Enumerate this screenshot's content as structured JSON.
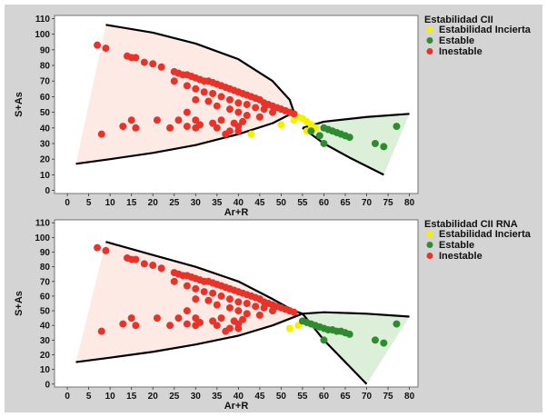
{
  "chart_data": [
    {
      "type": "scatter",
      "xlabel": "Ar+R",
      "ylabel": "S+As",
      "xlim": [
        -3,
        82
      ],
      "ylim": [
        -2,
        112
      ],
      "xticks": [
        0,
        5,
        10,
        15,
        20,
        25,
        30,
        35,
        40,
        45,
        50,
        55,
        60,
        65,
        70,
        75,
        80
      ],
      "yticks": [
        0,
        10,
        20,
        30,
        40,
        50,
        60,
        70,
        80,
        90,
        100,
        110
      ],
      "grid": false,
      "legend_position": "right",
      "legend_title": "Estabilidad CII",
      "series": [
        {
          "name": "Estabilidad Incierta",
          "color": "#f2f200",
          "points": [
            [
              43,
              36
            ],
            [
              50,
              42
            ],
            [
              53,
              45
            ],
            [
              54,
              47
            ],
            [
              55,
              46
            ],
            [
              56,
              44
            ],
            [
              57,
              42
            ],
            [
              58,
              40
            ],
            [
              56,
              38
            ]
          ]
        },
        {
          "name": "Estable",
          "color": "#2e8b2e",
          "points": [
            [
              57,
              38
            ],
            [
              60,
              40
            ],
            [
              61,
              39
            ],
            [
              62,
              38
            ],
            [
              63,
              37
            ],
            [
              64,
              36
            ],
            [
              65,
              35
            ],
            [
              66,
              34
            ],
            [
              60,
              30
            ],
            [
              72,
              30
            ],
            [
              74,
              28
            ],
            [
              77,
              41
            ],
            [
              59,
              35
            ]
          ]
        },
        {
          "name": "Inestable",
          "color": "#e8332a",
          "points": [
            [
              7,
              93
            ],
            [
              9,
              91
            ],
            [
              14,
              86
            ],
            [
              15,
              85
            ],
            [
              16,
              85
            ],
            [
              18,
              82
            ],
            [
              20,
              81
            ],
            [
              22,
              79
            ],
            [
              25,
              76
            ],
            [
              26,
              75
            ],
            [
              27,
              74
            ],
            [
              28,
              74
            ],
            [
              29,
              73
            ],
            [
              30,
              72
            ],
            [
              31,
              71
            ],
            [
              32,
              70
            ],
            [
              33,
              70
            ],
            [
              34,
              69
            ],
            [
              35,
              68
            ],
            [
              36,
              67
            ],
            [
              37,
              66
            ],
            [
              38,
              65
            ],
            [
              39,
              64
            ],
            [
              40,
              63
            ],
            [
              41,
              62
            ],
            [
              42,
              61
            ],
            [
              43,
              60
            ],
            [
              44,
              59
            ],
            [
              45,
              58
            ],
            [
              46,
              56
            ],
            [
              47,
              55
            ],
            [
              48,
              54
            ],
            [
              49,
              53
            ],
            [
              50,
              52
            ],
            [
              51,
              51
            ],
            [
              52,
              50
            ],
            [
              53,
              49
            ],
            [
              25,
              70
            ],
            [
              28,
              67
            ],
            [
              30,
              65
            ],
            [
              32,
              63
            ],
            [
              34,
              62
            ],
            [
              36,
              60
            ],
            [
              38,
              58
            ],
            [
              40,
              56
            ],
            [
              42,
              55
            ],
            [
              44,
              53
            ],
            [
              46,
              52
            ],
            [
              48,
              50
            ],
            [
              30,
              58
            ],
            [
              33,
              57
            ],
            [
              35,
              54
            ],
            [
              38,
              52
            ],
            [
              40,
              50
            ],
            [
              42,
              48
            ],
            [
              45,
              47
            ],
            [
              28,
              50
            ],
            [
              26,
              45
            ],
            [
              30,
              45
            ],
            [
              36,
              45
            ],
            [
              39,
              43
            ],
            [
              40,
              41
            ],
            [
              41,
              44
            ],
            [
              34,
              43
            ],
            [
              31,
              42
            ],
            [
              40,
              38
            ],
            [
              37,
              36
            ],
            [
              21,
              45
            ],
            [
              15,
              45
            ],
            [
              13,
              41
            ],
            [
              16,
              40
            ],
            [
              8,
              36
            ],
            [
              24,
              40
            ],
            [
              28,
              41
            ],
            [
              35,
              40
            ],
            [
              38,
              38
            ],
            [
              30,
              40
            ]
          ]
        }
      ],
      "boundary_upper": [
        [
          9,
          106
        ],
        [
          20,
          101
        ],
        [
          30,
          94
        ],
        [
          40,
          84
        ],
        [
          48,
          70
        ],
        [
          52,
          58
        ],
        [
          53,
          50
        ]
      ],
      "boundary_lower": [
        [
          2,
          17
        ],
        [
          10,
          20
        ],
        [
          20,
          24
        ],
        [
          30,
          29
        ],
        [
          40,
          36
        ],
        [
          48,
          43
        ],
        [
          53,
          50
        ]
      ],
      "stable_upper": [
        [
          55,
          40
        ],
        [
          60,
          44
        ],
        [
          70,
          47
        ],
        [
          80,
          49
        ]
      ],
      "stable_lower": [
        [
          55,
          40
        ],
        [
          60,
          30
        ],
        [
          66,
          21
        ],
        [
          74,
          10
        ]
      ]
    },
    {
      "type": "scatter",
      "xlabel": "Ar+R",
      "ylabel": "S+As",
      "xlim": [
        -3,
        82
      ],
      "ylim": [
        -2,
        112
      ],
      "xticks": [
        0,
        5,
        10,
        15,
        20,
        25,
        30,
        35,
        40,
        45,
        50,
        55,
        60,
        65,
        70,
        75,
        80
      ],
      "yticks": [
        0,
        10,
        20,
        30,
        40,
        50,
        60,
        70,
        80,
        90,
        100,
        110
      ],
      "grid": false,
      "legend_position": "right",
      "legend_title": "Estabilidad CII RNA",
      "series": [
        {
          "name": "Estabilidad Incierta",
          "color": "#f2f200",
          "points": [
            [
              52,
              38
            ],
            [
              54,
              40
            ]
          ]
        },
        {
          "name": "Estable",
          "color": "#2e8b2e",
          "points": [
            [
              55,
              43
            ],
            [
              56,
              42
            ],
            [
              57,
              41
            ],
            [
              58,
              40
            ],
            [
              59,
              39
            ],
            [
              60,
              38
            ],
            [
              61,
              37
            ],
            [
              62,
              37
            ],
            [
              63,
              36
            ],
            [
              64,
              36
            ],
            [
              65,
              35
            ],
            [
              66,
              34
            ],
            [
              60,
              30
            ],
            [
              72,
              30
            ],
            [
              74,
              28
            ],
            [
              77,
              41
            ]
          ]
        },
        {
          "name": "Inestable",
          "color": "#e8332a",
          "points": [
            [
              7,
              93
            ],
            [
              9,
              91
            ],
            [
              14,
              86
            ],
            [
              15,
              85
            ],
            [
              16,
              85
            ],
            [
              18,
              82
            ],
            [
              20,
              81
            ],
            [
              22,
              79
            ],
            [
              25,
              76
            ],
            [
              26,
              75
            ],
            [
              27,
              74
            ],
            [
              28,
              74
            ],
            [
              29,
              73
            ],
            [
              30,
              72
            ],
            [
              31,
              71
            ],
            [
              32,
              70
            ],
            [
              33,
              70
            ],
            [
              34,
              69
            ],
            [
              35,
              68
            ],
            [
              36,
              67
            ],
            [
              37,
              66
            ],
            [
              38,
              65
            ],
            [
              39,
              64
            ],
            [
              40,
              63
            ],
            [
              41,
              62
            ],
            [
              42,
              61
            ],
            [
              43,
              60
            ],
            [
              44,
              59
            ],
            [
              45,
              58
            ],
            [
              46,
              56
            ],
            [
              47,
              55
            ],
            [
              48,
              54
            ],
            [
              49,
              53
            ],
            [
              50,
              52
            ],
            [
              51,
              51
            ],
            [
              52,
              50
            ],
            [
              53,
              49
            ],
            [
              25,
              70
            ],
            [
              28,
              67
            ],
            [
              30,
              65
            ],
            [
              32,
              63
            ],
            [
              34,
              62
            ],
            [
              36,
              60
            ],
            [
              38,
              58
            ],
            [
              40,
              56
            ],
            [
              42,
              55
            ],
            [
              44,
              53
            ],
            [
              46,
              52
            ],
            [
              48,
              50
            ],
            [
              30,
              58
            ],
            [
              33,
              57
            ],
            [
              35,
              54
            ],
            [
              38,
              52
            ],
            [
              40,
              50
            ],
            [
              42,
              48
            ],
            [
              45,
              47
            ],
            [
              28,
              50
            ],
            [
              26,
              45
            ],
            [
              30,
              45
            ],
            [
              36,
              45
            ],
            [
              39,
              43
            ],
            [
              40,
              41
            ],
            [
              41,
              44
            ],
            [
              34,
              43
            ],
            [
              31,
              42
            ],
            [
              40,
              38
            ],
            [
              37,
              36
            ],
            [
              21,
              45
            ],
            [
              15,
              45
            ],
            [
              13,
              41
            ],
            [
              16,
              40
            ],
            [
              8,
              36
            ],
            [
              24,
              40
            ],
            [
              28,
              41
            ],
            [
              35,
              40
            ],
            [
              38,
              38
            ],
            [
              30,
              40
            ]
          ]
        }
      ],
      "boundary_upper": [
        [
          9,
          97
        ],
        [
          20,
          88
        ],
        [
          30,
          80
        ],
        [
          40,
          70
        ],
        [
          48,
          58
        ],
        [
          53,
          50
        ],
        [
          55,
          48
        ]
      ],
      "boundary_lower": [
        [
          2,
          15
        ],
        [
          10,
          18
        ],
        [
          20,
          22
        ],
        [
          30,
          27
        ],
        [
          40,
          33
        ],
        [
          48,
          40
        ],
        [
          55,
          48
        ]
      ],
      "stable_upper": [
        [
          55,
          48
        ],
        [
          60,
          49
        ],
        [
          70,
          48
        ],
        [
          80,
          46
        ]
      ],
      "stable_lower": [
        [
          55,
          48
        ],
        [
          60,
          30
        ],
        [
          65,
          15
        ],
        [
          70,
          0
        ]
      ]
    }
  ]
}
